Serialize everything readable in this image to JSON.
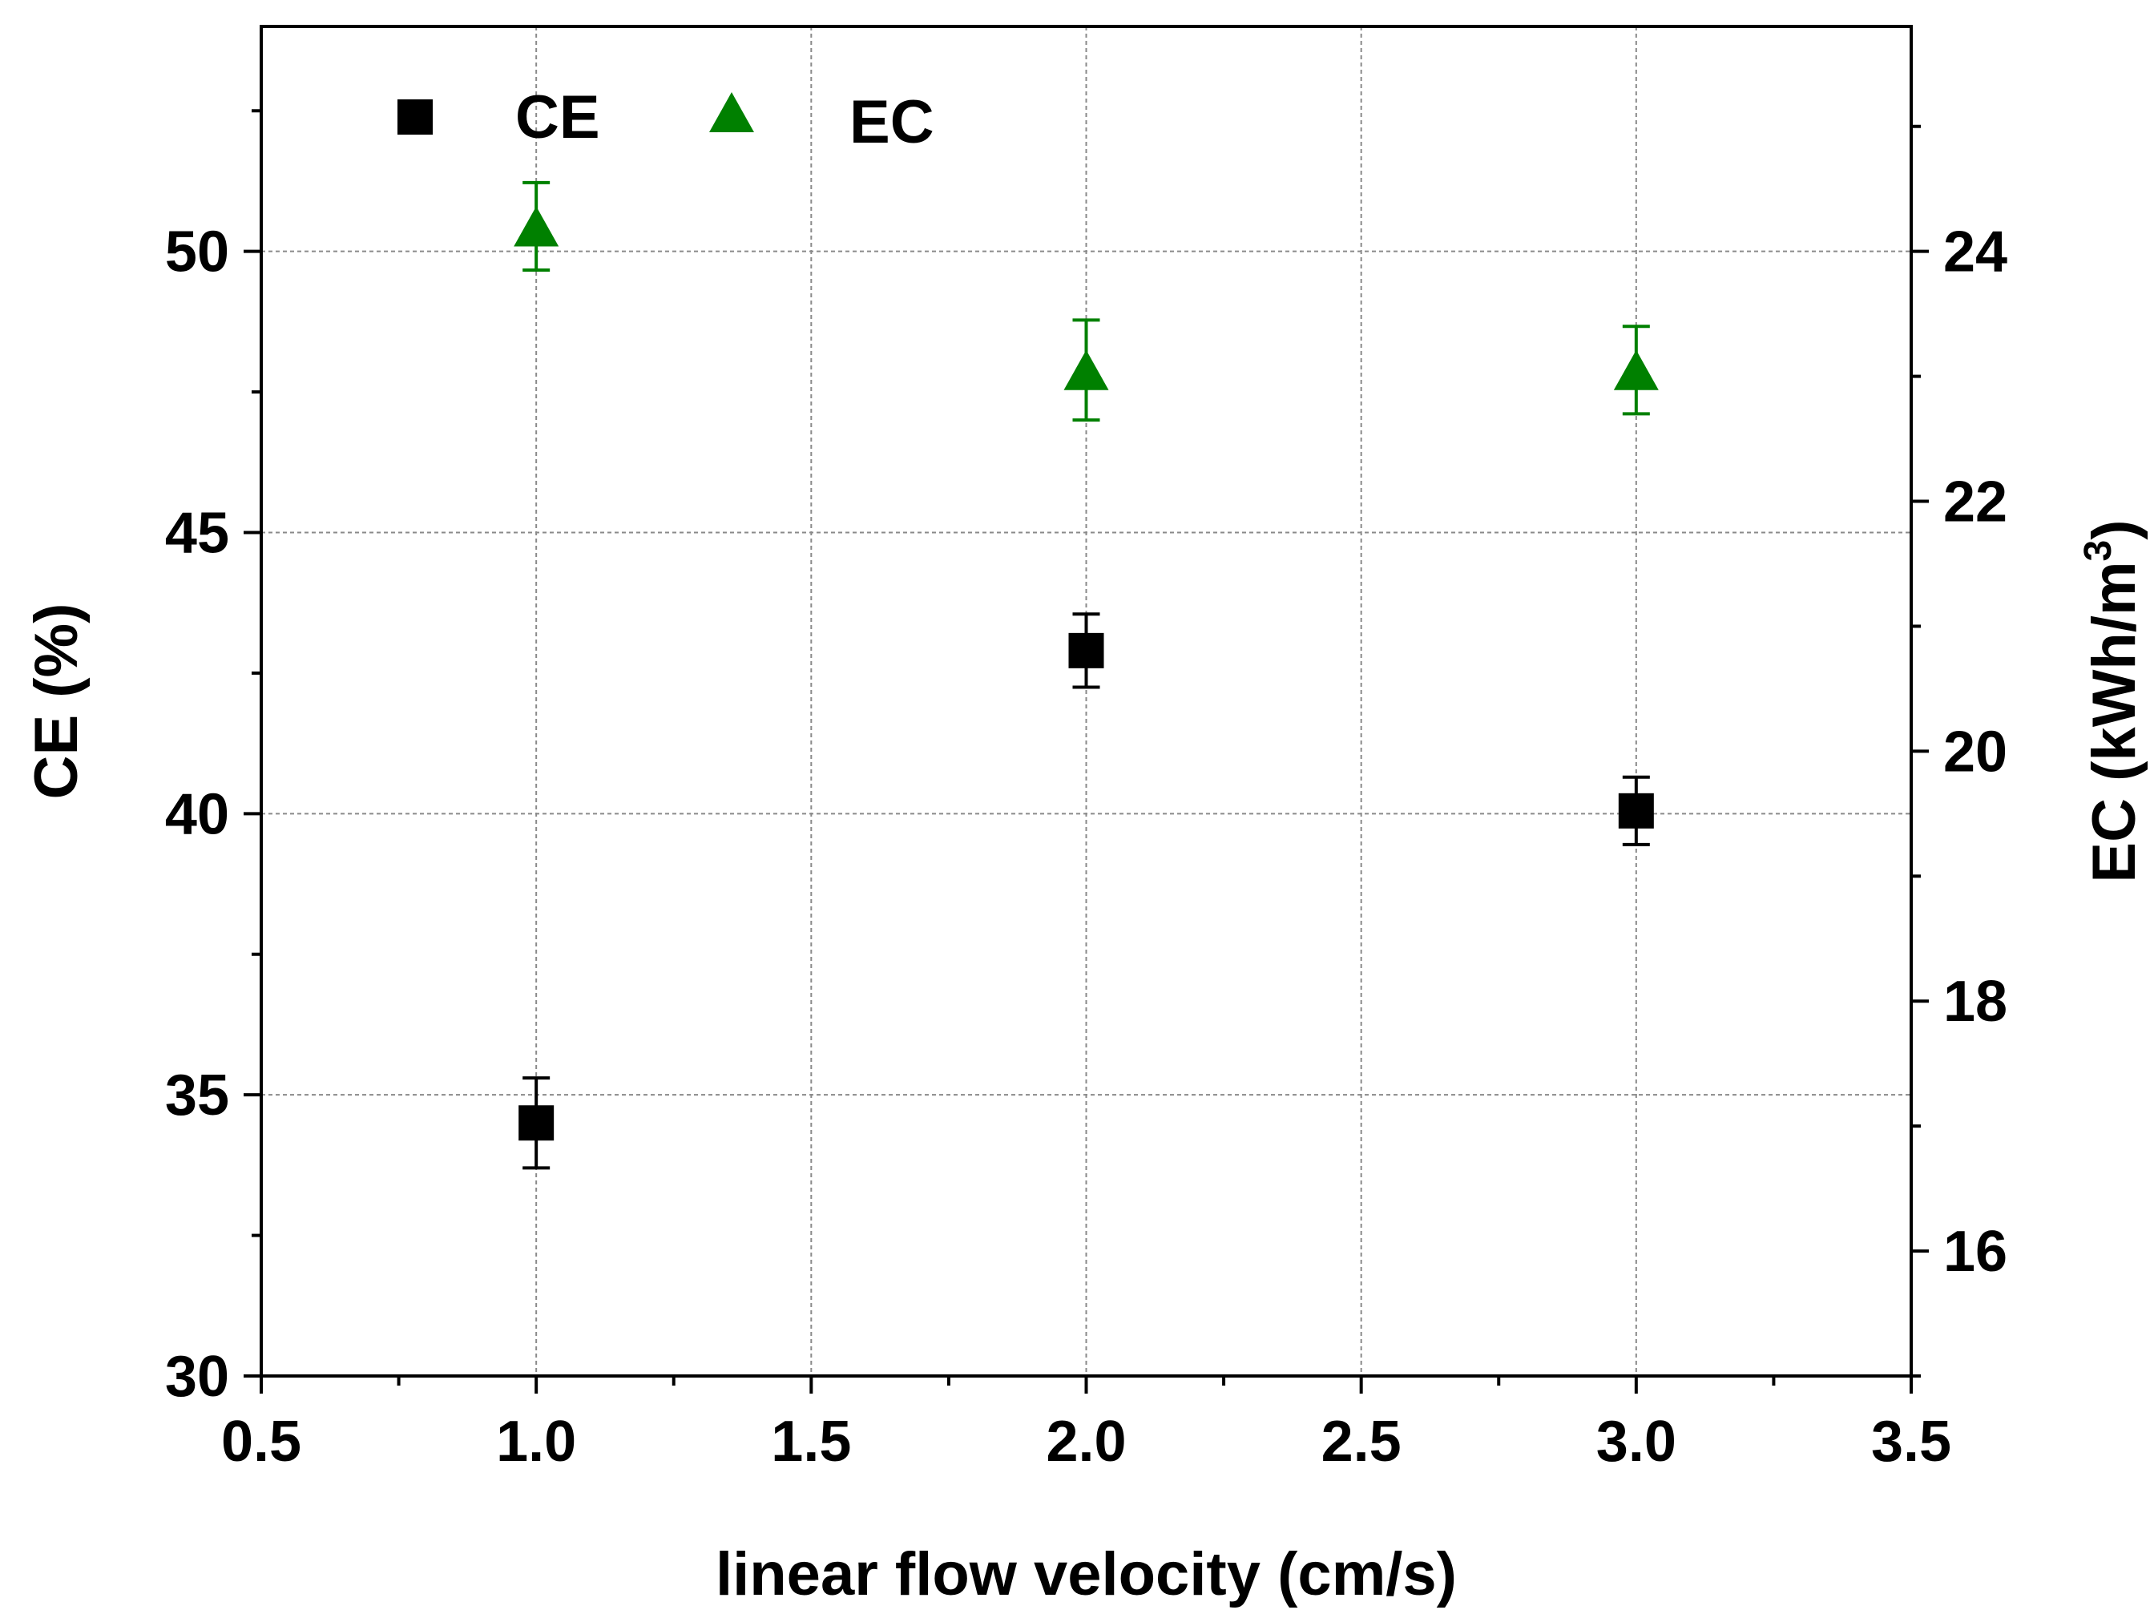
{
  "chart_data": {
    "type": "scatter",
    "title": "",
    "xlabel": "linear flow velocity (cm/s)",
    "ylabel": "CE (%)",
    "y2label_main": "EC (kWh/m",
    "y2label_sup": "3",
    "y2label_close": ")",
    "xlim": [
      0.5,
      3.5
    ],
    "ylim": [
      30,
      54
    ],
    "y2lim": [
      15,
      25.8
    ],
    "grid": true,
    "legend_position": "top-left",
    "xticks": [
      "0.5",
      "1.0",
      "1.5",
      "2.0",
      "2.5",
      "3.0",
      "3.5"
    ],
    "yticks": [
      "30",
      "35",
      "40",
      "45",
      "50"
    ],
    "y2ticks": [
      "16",
      "18",
      "20",
      "22",
      "24"
    ],
    "series": [
      {
        "name": "CE",
        "axis": "left",
        "marker": "square",
        "color": "#000000",
        "x": [
          1.0,
          2.0,
          3.0
        ],
        "y": [
          34.5,
          42.9,
          40.05
        ],
        "err": [
          0.8,
          0.65,
          0.6
        ]
      },
      {
        "name": "EC",
        "axis": "right",
        "marker": "triangle",
        "color": "#008000",
        "x": [
          1.0,
          2.0,
          3.0
        ],
        "y": [
          24.2,
          23.05,
          23.05
        ],
        "err": [
          0.35,
          0.4,
          0.35
        ]
      }
    ]
  }
}
